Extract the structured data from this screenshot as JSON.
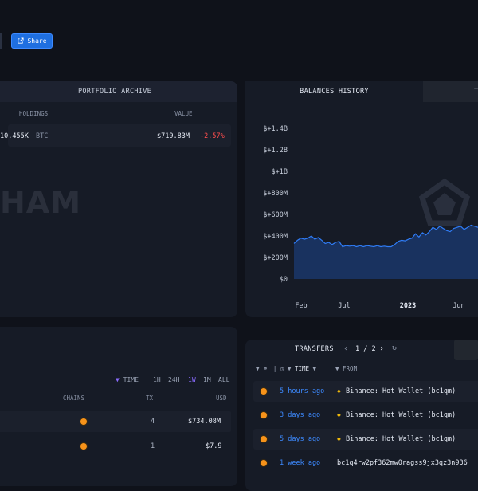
{
  "share": {
    "label": "Share"
  },
  "portfolio": {
    "title": "PORTFOLIO ARCHIVE",
    "columns": {
      "holdings": "HOLDINGS",
      "value": "VALUE"
    },
    "row": {
      "amount": "10.455K",
      "symbol": "BTC",
      "value": "$719.83M",
      "change": "-2.57%"
    },
    "watermark": "HAM"
  },
  "balances": {
    "tab_active": "BALANCES HISTORY",
    "tab_other": "T",
    "colors": {
      "line": "#2f7cf6",
      "fill": "#1a3566"
    }
  },
  "chart_data": {
    "type": "area",
    "title": "",
    "xlabel": "",
    "ylabel": "",
    "ylim": [
      0,
      1400000000
    ],
    "y_ticks": [
      "$+1.4B",
      "$+1.2B",
      "$+1B",
      "$+800M",
      "$+600M",
      "$+400M",
      "$+200M",
      "$0"
    ],
    "x_ticks": [
      "Feb",
      "Jul",
      "2023",
      "Jun"
    ],
    "series": [
      {
        "values": [
          330,
          360,
          380,
          370,
          380,
          400,
          370,
          385,
          360,
          330,
          340,
          320,
          340,
          350,
          300,
          310,
          305,
          310,
          300,
          310,
          300,
          310,
          305,
          300,
          310,
          300,
          305,
          300,
          300,
          320,
          350,
          360,
          355,
          370,
          380,
          420,
          390,
          430,
          410,
          440,
          480,
          460,
          490,
          470,
          450,
          440,
          470,
          480,
          490,
          460,
          480,
          500,
          490,
          480
        ]
      }
    ]
  },
  "counterparties": {
    "filters": {
      "time": "TIME",
      "r1": "1H",
      "r2": "24H",
      "r3": "1W",
      "r4": "1M",
      "r5": "ALL"
    },
    "columns": {
      "chains": "CHAINS",
      "tx": "TX",
      "usd": "USD"
    },
    "rows": [
      {
        "tx": "4",
        "usd": "$734.08M"
      },
      {
        "tx": "1",
        "usd": "$7.9"
      }
    ]
  },
  "transfers": {
    "title": "TRANSFERS",
    "page": "1 / 2",
    "filters": {
      "time": "TIME",
      "from": "FROM"
    },
    "rows": [
      {
        "time": "5 hours ago",
        "from": "Binance: Hot Wallet (bc1qm)"
      },
      {
        "time": "3 days ago",
        "from": "Binance: Hot Wallet (bc1qm)"
      },
      {
        "time": "5 days ago",
        "from": "Binance: Hot Wallet (bc1qm)"
      },
      {
        "time": "1 week ago",
        "from": "bc1q4rw2pf362mw0ragss9jx3qz3n936"
      }
    ]
  }
}
